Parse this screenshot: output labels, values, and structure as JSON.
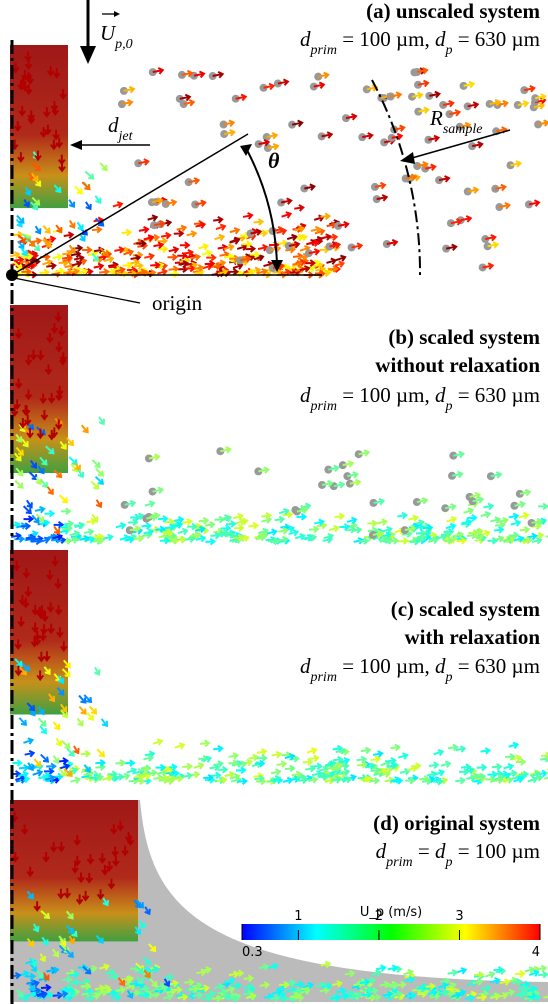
{
  "panels": [
    {
      "title": [
        "(a) unscaled system"
      ],
      "params": [
        {
          "text": "d",
          "style": "italic"
        },
        {
          "text": "prim",
          "style": "sub"
        },
        {
          "text": " = 100 µm, ",
          "style": "normal"
        },
        {
          "text": "d",
          "style": "italic"
        },
        {
          "text": "p",
          "style": "sub"
        },
        {
          "text": " = 630 µm",
          "style": "normal"
        }
      ]
    },
    {
      "title": [
        "(b) scaled system",
        "without relaxation"
      ],
      "params": [
        {
          "text": "d",
          "style": "italic"
        },
        {
          "text": "prim",
          "style": "sub"
        },
        {
          "text": " = 100 µm, ",
          "style": "normal"
        },
        {
          "text": "d",
          "style": "italic"
        },
        {
          "text": "p",
          "style": "sub"
        },
        {
          "text": " = 630 µm",
          "style": "normal"
        }
      ]
    },
    {
      "title": [
        "(c) scaled system",
        "with relaxation"
      ],
      "params": [
        {
          "text": "d",
          "style": "italic"
        },
        {
          "text": "prim",
          "style": "sub"
        },
        {
          "text": " = 100 µm, ",
          "style": "normal"
        },
        {
          "text": "d",
          "style": "italic"
        },
        {
          "text": "p",
          "style": "sub"
        },
        {
          "text": " = 630 µm",
          "style": "normal"
        }
      ]
    },
    {
      "title": [
        "(d) original system"
      ],
      "params": [
        {
          "text": "d",
          "style": "italic"
        },
        {
          "text": "prim",
          "style": "sub"
        },
        {
          "text": " = ",
          "style": "normal"
        },
        {
          "text": "d",
          "style": "italic"
        },
        {
          "text": "p",
          "style": "sub"
        },
        {
          "text": " = 100 µm",
          "style": "normal"
        }
      ]
    }
  ],
  "labels": {
    "velocity": [
      {
        "text": "U",
        "style": "italic"
      },
      {
        "text": "p,0",
        "style": "sub"
      }
    ],
    "jet": [
      {
        "text": "d",
        "style": "italic"
      },
      {
        "text": "jet",
        "style": "sub"
      }
    ],
    "theta": "θ",
    "sample": [
      {
        "text": "R",
        "style": "italic"
      },
      {
        "text": "sample",
        "style": "sub"
      }
    ],
    "origin": "origin"
  },
  "colorbar": {
    "title": "U_p (m/s)",
    "lim": [
      0.3,
      4
    ],
    "ticks": [
      0.3,
      1,
      2,
      3,
      4
    ]
  }
}
